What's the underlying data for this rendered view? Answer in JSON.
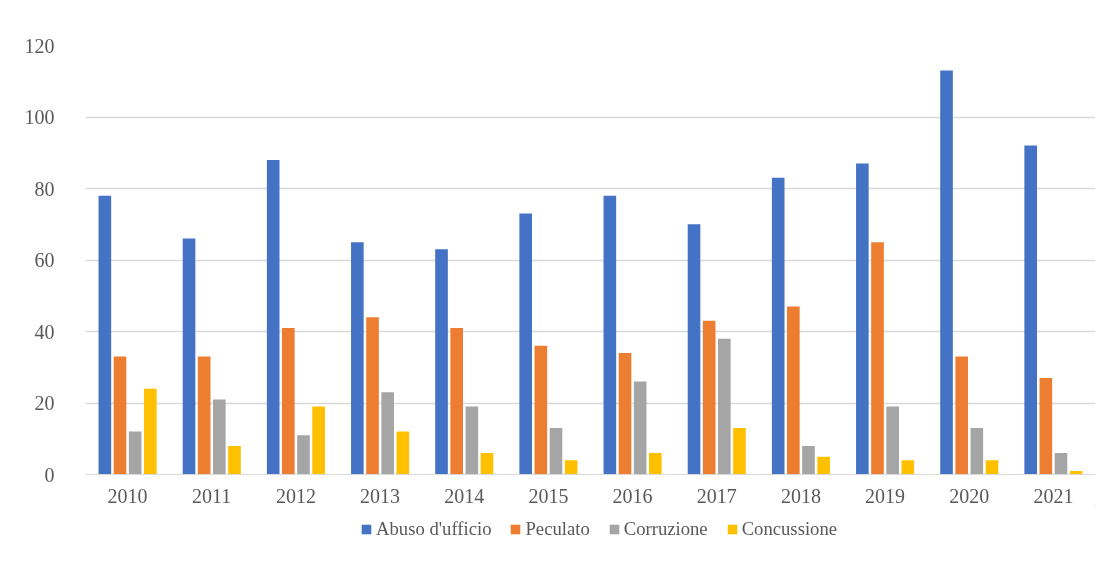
{
  "chart_data": {
    "type": "bar",
    "categories": [
      "2010",
      "2011",
      "2012",
      "2013",
      "2014",
      "2015",
      "2016",
      "2017",
      "2018",
      "2019",
      "2020",
      "2021"
    ],
    "series": [
      {
        "name": "Abuso d'ufficio",
        "color": "#4472c4",
        "values": [
          78,
          66,
          88,
          65,
          63,
          73,
          78,
          70,
          83,
          87,
          113,
          92
        ]
      },
      {
        "name": "Peculato",
        "color": "#ed7d31",
        "values": [
          33,
          33,
          41,
          44,
          41,
          36,
          34,
          43,
          47,
          65,
          33,
          27
        ]
      },
      {
        "name": "Corruzione",
        "color": "#a5a5a5",
        "values": [
          12,
          21,
          11,
          23,
          19,
          13,
          26,
          38,
          8,
          19,
          13,
          6
        ]
      },
      {
        "name": "Concussione",
        "color": "#ffc000",
        "values": [
          24,
          8,
          19,
          12,
          6,
          4,
          6,
          13,
          5,
          4,
          4,
          1
        ]
      }
    ],
    "ylim": [
      0,
      120
    ],
    "yticks": [
      0,
      20,
      40,
      60,
      80,
      100,
      120
    ],
    "grid": "y",
    "legend": "bottom"
  }
}
